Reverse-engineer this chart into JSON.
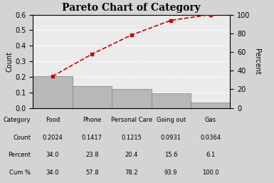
{
  "title": "Pareto Chart of Category",
  "categories": [
    "Food",
    "Phone",
    "Personal Care",
    "Going out",
    "Gas"
  ],
  "counts": [
    0.2024,
    0.1417,
    0.1215,
    0.0931,
    0.0364
  ],
  "cum_pcts": [
    34.0,
    57.8,
    78.2,
    93.9,
    100.0
  ],
  "table_row_labels": [
    "Category",
    "Count",
    "Percent",
    "Cum %"
  ],
  "table_col_values": [
    [
      "Food",
      "Phone",
      "Personal Care",
      "Going out",
      "Gas"
    ],
    [
      "0.2024",
      "0.1417",
      "0.1215",
      "0.0931",
      "0.0364"
    ],
    [
      "34.0",
      "23.8",
      "20.4",
      "15.6",
      "6.1"
    ],
    [
      "34.0",
      "57.8",
      "78.2",
      "93.9",
      "100.0"
    ]
  ],
  "bar_color": "#b8b8b8",
  "bar_edge_color": "#808080",
  "line_color": "#cc0000",
  "marker_color": "#cc0000",
  "background_color": "#d4d4d4",
  "plot_bg_color": "#ebebeb",
  "ylabel_left": "Count",
  "ylabel_right": "Percent",
  "ylim_left": [
    0.0,
    0.6
  ],
  "ylim_right": [
    0,
    100
  ],
  "yticks_left": [
    0.0,
    0.1,
    0.2,
    0.3,
    0.4,
    0.5,
    0.6
  ],
  "yticks_right": [
    0,
    20,
    40,
    60,
    80,
    100
  ],
  "grid_color": "#ffffff",
  "title_fontsize": 10,
  "axis_fontsize": 7,
  "table_fontsize": 6
}
